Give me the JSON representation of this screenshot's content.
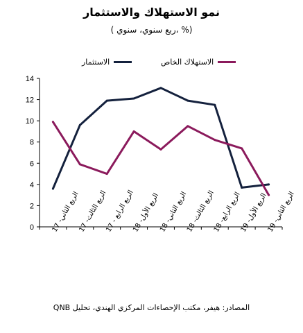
{
  "chart_data": {
    "type": "line",
    "title": "نمو الاستهلاك والاستثمار",
    "subtitle": "( ربع سنوي، سنوي، %)",
    "source": "المصادر: هيفر، مكتب الإحصاءات المركزي الهندي، تحليل QNB",
    "categories": [
      "الربع الثاني- 17",
      "الربع الثالث- 17",
      "الربع الرابع - 17",
      "الربع الأول- 18",
      "الربع الثاني- 18",
      "الربع الثالث- 18",
      "الربع الرابع- 18",
      "الربع الأول- 19",
      "الربع الثاني- 19"
    ],
    "series": [
      {
        "name": "الاستثمار",
        "color": "#14213d",
        "values": [
          3.6,
          9.6,
          11.9,
          12.1,
          13.1,
          11.9,
          11.5,
          3.7,
          4.0
        ]
      },
      {
        "name": "الاستهلاك الخاص",
        "color": "#8b1a5c",
        "values": [
          9.9,
          5.9,
          5.0,
          9.0,
          7.3,
          9.5,
          8.2,
          7.4,
          3.0
        ]
      }
    ],
    "ylim": [
      0,
      14
    ],
    "yticks": [
      "0",
      "2",
      "4",
      "6",
      "8",
      "10",
      "12",
      "14"
    ],
    "grid": false,
    "legend": "top"
  }
}
